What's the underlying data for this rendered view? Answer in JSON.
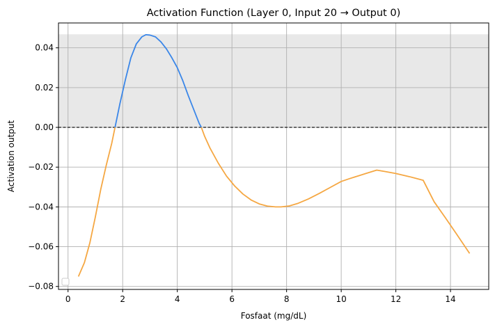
{
  "chart_data": {
    "type": "line",
    "title": "Activation Function (Layer 0, Input 20 → Output 0)",
    "xlabel": "Fosfaat (mg/dL)",
    "ylabel": "Activation output",
    "xlim": [
      -0.35,
      15.4
    ],
    "ylim": [
      -0.0815,
      0.0525
    ],
    "xticks": [
      0,
      2,
      4,
      6,
      8,
      10,
      12,
      14
    ],
    "yticks": [
      -0.08,
      -0.06,
      -0.04,
      -0.02,
      0.0,
      0.02,
      0.04
    ],
    "ytick_labels": [
      "−0.08",
      "−0.06",
      "−0.04",
      "−0.02",
      "0.00",
      "0.02",
      "0.04"
    ],
    "grid": true,
    "legend": "lower-left, empty",
    "shaded_band": {
      "y0": 0.0,
      "y1": 0.0468,
      "color": "#e8e8e8"
    },
    "zero_line": {
      "y": 0.0,
      "style": "dashed",
      "color": "#000000"
    },
    "curve": {
      "x": [
        0.38,
        0.6,
        0.8,
        1.0,
        1.2,
        1.4,
        1.6,
        1.72,
        1.9,
        2.1,
        2.3,
        2.5,
        2.7,
        2.85,
        3.0,
        3.2,
        3.4,
        3.6,
        3.8,
        4.0,
        4.2,
        4.4,
        4.6,
        4.8,
        4.88,
        5.0,
        5.2,
        5.5,
        5.8,
        6.1,
        6.4,
        6.7,
        7.0,
        7.3,
        7.6,
        7.8,
        8.1,
        8.4,
        8.8,
        9.2,
        9.6,
        10.0,
        10.3,
        10.6,
        10.9,
        11.3,
        11.6,
        12.0,
        12.5,
        13.0,
        13.4,
        13.8,
        14.2,
        14.7
      ],
      "y": [
        -0.075,
        -0.068,
        -0.058,
        -0.045,
        -0.031,
        -0.019,
        -0.008,
        0.0,
        0.012,
        0.024,
        0.035,
        0.042,
        0.0455,
        0.0466,
        0.0464,
        0.0455,
        0.043,
        0.0395,
        0.035,
        0.03,
        0.0235,
        0.016,
        0.009,
        0.002,
        0.0,
        -0.0045,
        -0.0105,
        -0.018,
        -0.0245,
        -0.0295,
        -0.0335,
        -0.0365,
        -0.0385,
        -0.0396,
        -0.04,
        -0.04,
        -0.0395,
        -0.0383,
        -0.036,
        -0.0332,
        -0.0302,
        -0.0272,
        -0.0258,
        -0.0245,
        -0.0232,
        -0.0215,
        -0.0222,
        -0.0232,
        -0.0248,
        -0.0266,
        -0.0374,
        -0.0452,
        -0.0532,
        -0.0634
      ],
      "positive_color": "#3a86e8",
      "negative_color": "#f5a742"
    }
  }
}
